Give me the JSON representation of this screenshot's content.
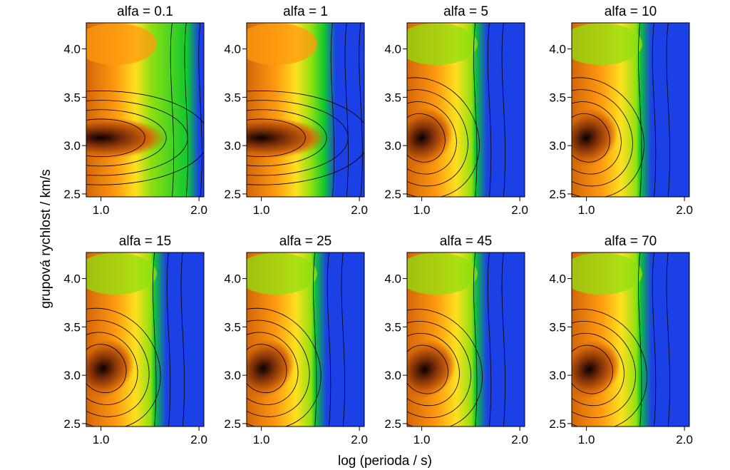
{
  "figure": {
    "xlabel": "log (perioda / s)",
    "ylabel": "grupová rychlost / km/s"
  },
  "chart_data": [
    {
      "type": "heatmap",
      "title": "alfa = 0.1",
      "xlim": [
        0.85,
        2.05
      ],
      "ylim": [
        2.47,
        4.27
      ],
      "xticks": [
        1.0,
        2.0
      ],
      "xtick_labels": [
        "1.0",
        "2.0"
      ],
      "yticks": [
        2.5,
        3.0,
        3.5,
        4.0
      ],
      "ytick_labels": [
        "2.5",
        "3.0",
        "3.5",
        "4.0"
      ],
      "colorscale": [
        "#0a0000",
        "#7a2e08",
        "#d4660a",
        "#ff9a10",
        "#ffe020",
        "#8fe010",
        "#10c830",
        "#1a40e6"
      ],
      "max_ridge": {
        "x": 1.0,
        "y": 3.08
      }
    },
    {
      "type": "heatmap",
      "title": "alfa = 1",
      "xlim": [
        0.85,
        2.05
      ],
      "ylim": [
        2.47,
        4.27
      ],
      "xticks": [
        1.0,
        2.0
      ],
      "xtick_labels": [
        "1.0",
        "2.0"
      ],
      "yticks": [
        2.5,
        3.0,
        3.5,
        4.0
      ],
      "ytick_labels": [
        "2.5",
        "3.0",
        "3.5",
        "4.0"
      ],
      "colorscale": [
        "#0a0000",
        "#7a2e08",
        "#d4660a",
        "#ff9a10",
        "#ffe020",
        "#8fe010",
        "#10c830",
        "#1a40e6"
      ],
      "max_ridge": {
        "x": 1.0,
        "y": 3.08
      }
    },
    {
      "type": "heatmap",
      "title": "alfa = 5",
      "xlim": [
        0.85,
        2.05
      ],
      "ylim": [
        2.47,
        4.27
      ],
      "xticks": [
        1.0,
        2.0
      ],
      "xtick_labels": [
        "1.0",
        "2.0"
      ],
      "yticks": [
        2.5,
        3.0,
        3.5,
        4.0
      ],
      "ytick_labels": [
        "2.5",
        "3.0",
        "3.5",
        "4.0"
      ],
      "colorscale": [
        "#0a0000",
        "#7a2e08",
        "#d4660a",
        "#ff9a10",
        "#ffe020",
        "#8fe010",
        "#10c830",
        "#1a40e6"
      ],
      "max_ridge": {
        "x": 1.0,
        "y": 3.08
      }
    },
    {
      "type": "heatmap",
      "title": "alfa = 10",
      "xlim": [
        0.85,
        2.05
      ],
      "ylim": [
        2.47,
        4.27
      ],
      "xticks": [
        1.0,
        2.0
      ],
      "xtick_labels": [
        "1.0",
        "2.0"
      ],
      "yticks": [
        2.5,
        3.0,
        3.5,
        4.0
      ],
      "ytick_labels": [
        "2.5",
        "3.0",
        "3.5",
        "4.0"
      ],
      "colorscale": [
        "#0a0000",
        "#7a2e08",
        "#d4660a",
        "#ff9a10",
        "#ffe020",
        "#8fe010",
        "#10c830",
        "#1a40e6"
      ],
      "max_ridge": {
        "x": 1.0,
        "y": 3.08
      }
    },
    {
      "type": "heatmap",
      "title": "alfa = 15",
      "xlim": [
        0.85,
        2.05
      ],
      "ylim": [
        2.47,
        4.27
      ],
      "xticks": [
        1.0,
        2.0
      ],
      "xtick_labels": [
        "1.0",
        "2.0"
      ],
      "yticks": [
        2.5,
        3.0,
        3.5,
        4.0
      ],
      "ytick_labels": [
        "2.5",
        "3.0",
        "3.5",
        "4.0"
      ],
      "colorscale": [
        "#0a0000",
        "#7a2e08",
        "#d4660a",
        "#ff9a10",
        "#ffe020",
        "#8fe010",
        "#10c830",
        "#1a40e6"
      ],
      "max_ridge": {
        "x": 1.02,
        "y": 3.07
      }
    },
    {
      "type": "heatmap",
      "title": "alfa = 25",
      "xlim": [
        0.85,
        2.05
      ],
      "ylim": [
        2.47,
        4.27
      ],
      "xticks": [
        1.0,
        2.0
      ],
      "xtick_labels": [
        "1.0",
        "2.0"
      ],
      "yticks": [
        2.5,
        3.0,
        3.5,
        4.0
      ],
      "ytick_labels": [
        "2.5",
        "3.0",
        "3.5",
        "4.0"
      ],
      "colorscale": [
        "#0a0000",
        "#7a2e08",
        "#d4660a",
        "#ff9a10",
        "#ffe020",
        "#8fe010",
        "#10c830",
        "#1a40e6"
      ],
      "max_ridge": {
        "x": 1.02,
        "y": 3.07
      }
    },
    {
      "type": "heatmap",
      "title": "alfa = 45",
      "xlim": [
        0.85,
        2.05
      ],
      "ylim": [
        2.47,
        4.27
      ],
      "xticks": [
        1.0,
        2.0
      ],
      "xtick_labels": [
        "1.0",
        "2.0"
      ],
      "yticks": [
        2.5,
        3.0,
        3.5,
        4.0
      ],
      "ytick_labels": [
        "2.5",
        "3.0",
        "3.5",
        "4.0"
      ],
      "colorscale": [
        "#0a0000",
        "#7a2e08",
        "#d4660a",
        "#ff9a10",
        "#ffe020",
        "#8fe010",
        "#10c830",
        "#1a40e6"
      ],
      "max_ridge": {
        "x": 1.03,
        "y": 3.06
      }
    },
    {
      "type": "heatmap",
      "title": "alfa = 70",
      "xlim": [
        0.85,
        2.05
      ],
      "ylim": [
        2.47,
        4.27
      ],
      "xticks": [
        1.0,
        2.0
      ],
      "xtick_labels": [
        "1.0",
        "2.0"
      ],
      "yticks": [
        2.5,
        3.0,
        3.5,
        4.0
      ],
      "ytick_labels": [
        "2.5",
        "3.0",
        "3.5",
        "4.0"
      ],
      "colorscale": [
        "#0a0000",
        "#7a2e08",
        "#d4660a",
        "#ff9a10",
        "#ffe020",
        "#8fe010",
        "#10c830",
        "#1a40e6"
      ],
      "max_ridge": {
        "x": 1.03,
        "y": 3.06
      }
    }
  ]
}
